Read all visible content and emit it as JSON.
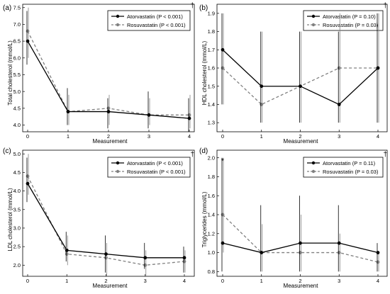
{
  "chart_data": [
    {
      "type": "line",
      "panel_label": "(a)",
      "dagger": "†",
      "asterisk": "",
      "xlabel": "Measurement",
      "ylabel": "Total cholesterol (mmol/L)",
      "x": [
        0,
        1,
        2,
        3,
        4
      ],
      "xlim": [
        0,
        4
      ],
      "ylim": [
        3.8,
        7.6
      ],
      "yticks": [
        4.0,
        4.5,
        5.0,
        5.5,
        6.0,
        6.5,
        7.0,
        7.5
      ],
      "ytick_labels": [
        "4.0",
        "4.5",
        "5.0",
        "5.5",
        "6.0",
        "6.5",
        "7.0",
        "7.5"
      ],
      "grid": false,
      "legend_position": "top-right",
      "series": [
        {
          "name": "Atorvastatin",
          "p_text": "(P < 0.001)",
          "values": [
            6.5,
            4.4,
            4.4,
            4.3,
            4.2
          ],
          "err_low": [
            5.8,
            4.0,
            3.9,
            3.9,
            3.8
          ],
          "err_high": [
            7.4,
            5.1,
            4.8,
            5.0,
            4.8
          ],
          "style": "solid",
          "color": "#000000"
        },
        {
          "name": "Rosuvastatin",
          "p_text": "(P < 0.001)",
          "values": [
            6.8,
            4.4,
            4.5,
            4.3,
            4.3
          ],
          "err_low": [
            6.0,
            4.0,
            4.0,
            4.0,
            3.9
          ],
          "err_high": [
            7.5,
            4.9,
            4.9,
            4.8,
            4.9
          ],
          "style": "dashed",
          "color": "#808080"
        }
      ]
    },
    {
      "type": "line",
      "panel_label": "(b)",
      "dagger": "†",
      "asterisk": "",
      "xlabel": "Measurement",
      "ylabel": "HDL cholesterol (mmol/L)",
      "x": [
        0,
        1,
        2,
        3,
        4
      ],
      "xlim": [
        0,
        4
      ],
      "ylim": [
        1.25,
        1.95
      ],
      "yticks": [
        1.3,
        1.4,
        1.5,
        1.6,
        1.7,
        1.8,
        1.9
      ],
      "ytick_labels": [
        "1.3",
        "1.4",
        "1.5",
        "1.6",
        "1.7",
        "1.8",
        "1.9"
      ],
      "grid": false,
      "legend_position": "top-right",
      "series": [
        {
          "name": "Atorvastatin",
          "p_text": "(P = 0.10)",
          "values": [
            1.7,
            1.5,
            1.5,
            1.4,
            1.6
          ],
          "err_low": [
            1.4,
            1.3,
            1.3,
            1.3,
            1.3
          ],
          "err_high": [
            1.9,
            1.8,
            1.8,
            1.8,
            1.9
          ],
          "style": "solid",
          "color": "#000000"
        },
        {
          "name": "Rosuvastatin",
          "p_text": "(P = 0.03)",
          "values": [
            1.6,
            1.4,
            1.5,
            1.6,
            1.6
          ],
          "err_low": [
            1.4,
            1.3,
            1.3,
            1.3,
            1.3
          ],
          "err_high": [
            1.9,
            1.8,
            1.8,
            1.9,
            1.9
          ],
          "style": "dashed",
          "color": "#808080"
        }
      ]
    },
    {
      "type": "line",
      "panel_label": "(c)",
      "dagger": "†",
      "asterisk": "",
      "xlabel": "Measurement",
      "ylabel": "LDL cholesterol (mmol/L)",
      "x": [
        0,
        1,
        2,
        3,
        4
      ],
      "xlim": [
        0,
        4
      ],
      "ylim": [
        1.7,
        5.1
      ],
      "yticks": [
        2.0,
        2.5,
        3.0,
        3.5,
        4.0,
        4.5,
        5.0
      ],
      "ytick_labels": [
        "2.0",
        "2.5",
        "3.0",
        "3.5",
        "4.0",
        "4.5",
        "5.0"
      ],
      "grid": false,
      "legend_position": "top-right",
      "series": [
        {
          "name": "Atorvastatin",
          "p_text": "(P < 0.001)",
          "values": [
            4.2,
            2.4,
            2.3,
            2.2,
            2.2
          ],
          "err_low": [
            3.7,
            2.1,
            1.8,
            1.9,
            1.8
          ],
          "err_high": [
            4.9,
            2.9,
            2.8,
            2.6,
            2.5
          ],
          "style": "solid",
          "color": "#000000"
        },
        {
          "name": "Rosuvastatin",
          "p_text": "(P < 0.001)",
          "values": [
            4.4,
            2.3,
            2.2,
            2.0,
            2.1
          ],
          "err_low": [
            3.9,
            2.0,
            1.7,
            1.7,
            1.8
          ],
          "err_high": [
            5.0,
            2.8,
            2.6,
            2.4,
            2.4
          ],
          "style": "dashed",
          "color": "#808080"
        }
      ]
    },
    {
      "type": "line",
      "panel_label": "(d)",
      "dagger": "†",
      "asterisk": "*",
      "xlabel": "Measurement",
      "ylabel": "Triglycerides (mmol/L)",
      "x": [
        0,
        1,
        2,
        3,
        4
      ],
      "xlim": [
        0,
        4
      ],
      "ylim": [
        0.75,
        2.08
      ],
      "yticks": [
        0.8,
        1.0,
        1.2,
        1.4,
        1.6,
        1.8,
        2.0
      ],
      "ytick_labels": [
        "0.8",
        "1.0",
        "1.2",
        "1.4",
        "1.6",
        "1.8",
        "2.0"
      ],
      "grid": false,
      "legend_position": "top-right",
      "series": [
        {
          "name": "Atorvastatin",
          "p_text": "(P = 0.11)",
          "values": [
            1.1,
            1.0,
            1.1,
            1.1,
            1.0
          ],
          "err_low": [
            0.8,
            0.8,
            0.8,
            0.8,
            0.8
          ],
          "err_high": [
            2.0,
            1.5,
            1.6,
            1.5,
            1.1
          ],
          "style": "solid",
          "color": "#000000"
        },
        {
          "name": "Rosuvastatin",
          "p_text": "(P = 0.03)",
          "values": [
            1.4,
            1.0,
            1.0,
            1.0,
            0.9
          ],
          "err_low": [
            1.0,
            0.8,
            0.8,
            0.8,
            0.8
          ],
          "err_high": [
            2.0,
            1.3,
            1.4,
            1.2,
            1.0
          ],
          "style": "dashed",
          "color": "#808080"
        }
      ]
    }
  ]
}
